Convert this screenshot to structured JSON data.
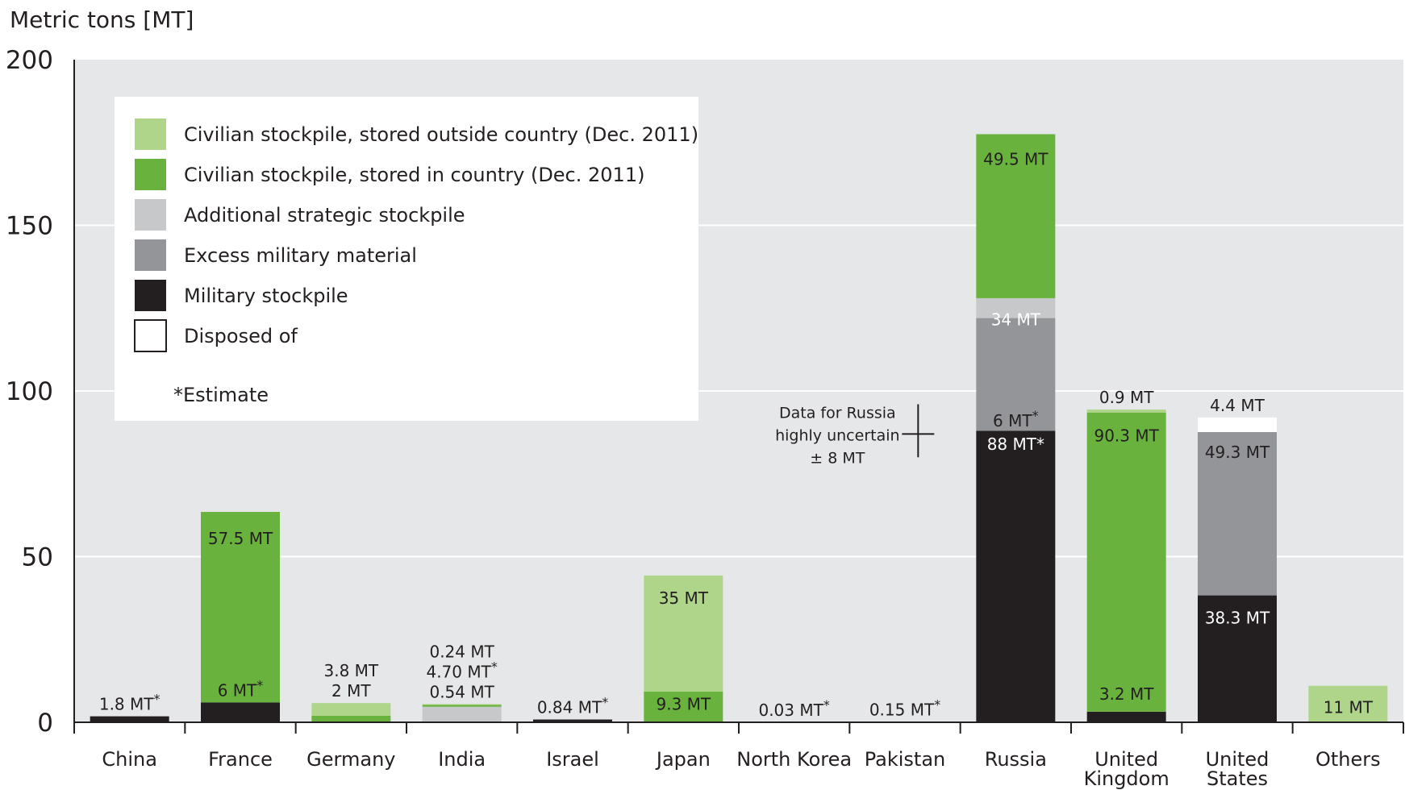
{
  "chart_data": {
    "type": "bar",
    "stacked": true,
    "ylabel": "Metric tons [MT]",
    "ylim": [
      0,
      200
    ],
    "yticks": [
      0,
      50,
      100,
      150,
      200
    ],
    "grid": true,
    "legend_position": "top-left",
    "categories": [
      "China",
      "France",
      "Germany",
      "India",
      "Israel",
      "Japan",
      "North Korea",
      "Pakistan",
      "Russia",
      "United Kingdom",
      "United States",
      "Others"
    ],
    "category_lines": [
      [
        "China"
      ],
      [
        "France"
      ],
      [
        "Germany"
      ],
      [
        "India"
      ],
      [
        "Israel"
      ],
      [
        "Japan"
      ],
      [
        "North Korea"
      ],
      [
        "Pakistan"
      ],
      [
        "Russia"
      ],
      [
        "United",
        "Kingdom"
      ],
      [
        "United",
        "States"
      ],
      [
        "Others"
      ]
    ],
    "series": [
      {
        "name": "Military stockpile",
        "color": "#231f20",
        "values": [
          1.8,
          6,
          0,
          0,
          0.84,
          0,
          0.03,
          0.15,
          88,
          3.2,
          38.3,
          0
        ]
      },
      {
        "name": "Excess military material",
        "color": "#939598",
        "values": [
          0,
          0,
          0,
          0,
          0,
          0,
          0,
          0,
          34,
          0,
          49.3,
          0
        ]
      },
      {
        "name": "Additional strategic stockpile",
        "color": "#c7c8ca",
        "values": [
          0,
          0,
          0,
          4.7,
          0,
          0,
          0,
          0,
          6,
          0,
          0,
          0
        ]
      },
      {
        "name": "Civilian stockpile, stored in country (Dec. 2011)",
        "color": "#6ab23e",
        "values": [
          0,
          57.5,
          2,
          0.54,
          0,
          9.3,
          0,
          0,
          49.5,
          90.3,
          0,
          0
        ]
      },
      {
        "name": "Civilian stockpile, stored outside country (Dec. 2011)",
        "color": "#afd58a",
        "values": [
          0,
          0,
          3.8,
          0.24,
          0,
          35,
          0,
          0,
          0,
          0.9,
          0,
          11
        ]
      },
      {
        "name": "Disposed of",
        "color": "#ffffff",
        "values": [
          0,
          0,
          0,
          0,
          0,
          0,
          0,
          0,
          0,
          0,
          4.4,
          0
        ]
      }
    ],
    "legend": [
      {
        "label": "Civilian stockpile, stored outside country (Dec. 2011)",
        "color": "#afd58a"
      },
      {
        "label": "Civilian stockpile, stored in country (Dec. 2011)",
        "color": "#6ab23e"
      },
      {
        "label": "Additional strategic stockpile",
        "color": "#c7c8ca"
      },
      {
        "label": "Excess military material",
        "color": "#939598"
      },
      {
        "label": "Military stockpile",
        "color": "#231f20"
      },
      {
        "label": "Disposed of",
        "color": "#ffffff",
        "outlined": true
      }
    ],
    "legend_note": "*Estimate",
    "data_labels": [
      {
        "category": "China",
        "text": "1.8 MT",
        "star": true,
        "y": 1.8,
        "where": "above",
        "offset": 0,
        "color": "#231f20"
      },
      {
        "category": "France",
        "text": "57.5 MT",
        "star": false,
        "y": 55.5,
        "where": "inside",
        "color": "#231f20"
      },
      {
        "category": "France",
        "text": "6 MT",
        "star": true,
        "y": 6,
        "where": "above",
        "offset": 0,
        "color": "#231f20"
      },
      {
        "category": "Germany",
        "text": "3.8 MT",
        "star": false,
        "y": 5.8,
        "where": "above",
        "offset": 1,
        "color": "#231f20"
      },
      {
        "category": "Germany",
        "text": "2 MT",
        "star": false,
        "y": 5.8,
        "where": "above",
        "offset": 0,
        "color": "#231f20"
      },
      {
        "category": "India",
        "text": "0.24 MT",
        "star": false,
        "y": 5.48,
        "where": "above",
        "offset": 2,
        "color": "#231f20"
      },
      {
        "category": "India",
        "text": "4.70 MT",
        "star": true,
        "y": 5.48,
        "where": "above",
        "offset": 1,
        "color": "#231f20"
      },
      {
        "category": "India",
        "text": "0.54 MT",
        "star": false,
        "y": 5.48,
        "where": "above",
        "offset": 0,
        "color": "#231f20"
      },
      {
        "category": "Israel",
        "text": "0.84 MT",
        "star": true,
        "y": 0.84,
        "where": "above",
        "offset": 0,
        "color": "#231f20"
      },
      {
        "category": "Japan",
        "text": "35 MT",
        "star": false,
        "y": 37.5,
        "where": "inside",
        "color": "#231f20"
      },
      {
        "category": "Japan",
        "text": "9.3 MT",
        "star": false,
        "y": 5.5,
        "where": "inside",
        "color": "#231f20"
      },
      {
        "category": "North Korea",
        "text": "0.03 MT",
        "star": true,
        "y": 0.03,
        "where": "above",
        "offset": 0,
        "color": "#231f20"
      },
      {
        "category": "Pakistan",
        "text": "0.15 MT",
        "star": true,
        "y": 0.15,
        "where": "above",
        "offset": 0,
        "color": "#231f20"
      },
      {
        "category": "Russia",
        "text": "49.5 MT",
        "star": false,
        "y": 170,
        "where": "inside",
        "color": "#231f20"
      },
      {
        "category": "Russia",
        "text": "34 MT",
        "star": false,
        "y": 121.5,
        "where": "inside",
        "color": "#ffffff"
      },
      {
        "category": "Russia",
        "text": "6 MT",
        "star": true,
        "y": 91,
        "where": "inside",
        "color": "#231f20"
      },
      {
        "category": "Russia",
        "text": "88 MT",
        "star": true,
        "star_inline": true,
        "y": 84,
        "where": "inside",
        "color": "#ffffff"
      },
      {
        "category": "United Kingdom",
        "text": "0.9 MT",
        "star": false,
        "y": 94.4,
        "where": "above",
        "offset": 0,
        "color": "#231f20"
      },
      {
        "category": "United Kingdom",
        "text": "90.3 MT",
        "star": false,
        "y": 86.5,
        "where": "inside",
        "color": "#231f20"
      },
      {
        "category": "United Kingdom",
        "text": "3.2 MT",
        "star": false,
        "y": 8.5,
        "where": "inside",
        "color": "#231f20"
      },
      {
        "category": "United States",
        "text": "4.4 MT",
        "star": false,
        "y": 92,
        "where": "above",
        "offset": 0,
        "color": "#231f20"
      },
      {
        "category": "United States",
        "text": "49.3 MT",
        "star": false,
        "y": 81.5,
        "where": "inside",
        "color": "#231f20"
      },
      {
        "category": "United States",
        "text": "38.3 MT",
        "star": false,
        "y": 31.5,
        "where": "inside",
        "color": "#ffffff"
      },
      {
        "category": "Others",
        "text": "11 MT",
        "star": false,
        "y": 4.5,
        "where": "inside",
        "color": "#231f20"
      }
    ],
    "annotation": {
      "lines": [
        "Data for Russia",
        "highly uncertain",
        "± 8 MT"
      ],
      "category": "Russia",
      "y": 88,
      "error": 8
    }
  }
}
